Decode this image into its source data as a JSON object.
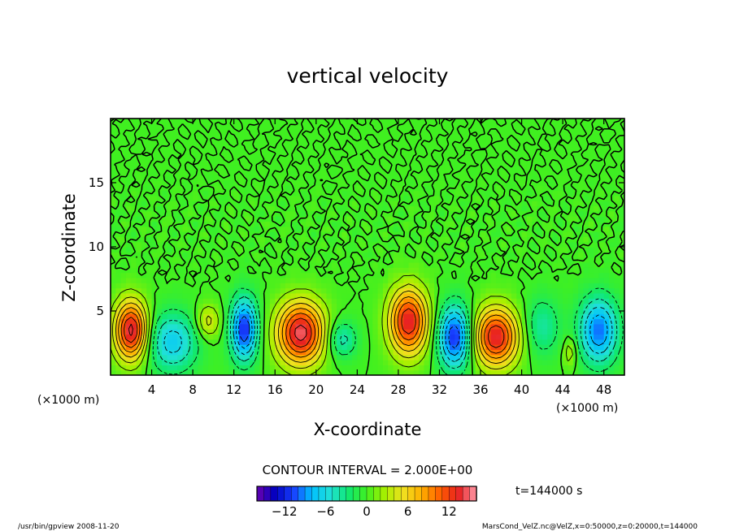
{
  "chart_data": {
    "type": "heatmap",
    "title": "vertical velocity",
    "xlabel": "X-coordinate",
    "ylabel": "Z-coordinate",
    "x_unit": "(×1000 m)",
    "y_unit": "(×1000 m)",
    "xlim": [
      0,
      50
    ],
    "ylim": [
      0,
      20
    ],
    "xticks": [
      "4",
      "8",
      "12",
      "16",
      "20",
      "24",
      "28",
      "32",
      "36",
      "40",
      "44",
      "48"
    ],
    "yticks": [
      "5",
      "10",
      "15"
    ],
    "contour_interval": "CONTOUR INTERVAL = 2.000E+00",
    "time": "t=144000 s",
    "colorbar": {
      "min": -16,
      "max": 16,
      "ticks": [
        "−12",
        "−6",
        "0",
        "6",
        "12"
      ],
      "colors": [
        "#6a00b0",
        "#0000c0",
        "#1840ff",
        "#00c0ff",
        "#20e0d8",
        "#10e870",
        "#40f020",
        "#a8f000",
        "#f0e020",
        "#ffb000",
        "#ff6000",
        "#e82020",
        "#ff9aa8"
      ]
    },
    "cells": [
      {
        "x": 2,
        "z": 3.5,
        "w": 15,
        "sx": 1.1,
        "sz": 1.6
      },
      {
        "x": 6,
        "z": 2.6,
        "w": -7,
        "sx": 1.7,
        "sz": 1.6
      },
      {
        "x": 9.5,
        "z": 4.2,
        "w": 5,
        "sx": 0.8,
        "sz": 0.9
      },
      {
        "x": 13,
        "z": 3.6,
        "w": -12,
        "sx": 0.9,
        "sz": 1.7
      },
      {
        "x": 18.5,
        "z": 3.3,
        "w": 15,
        "sx": 1.6,
        "sz": 1.7
      },
      {
        "x": 22.5,
        "z": 2.8,
        "w": -5,
        "sx": 1.0,
        "sz": 1.0
      },
      {
        "x": 29,
        "z": 4.2,
        "w": 14,
        "sx": 1.3,
        "sz": 1.8
      },
      {
        "x": 33.5,
        "z": 3.0,
        "w": -12,
        "sx": 1.1,
        "sz": 1.7
      },
      {
        "x": 37.5,
        "z": 3.0,
        "w": 14,
        "sx": 1.5,
        "sz": 1.6
      },
      {
        "x": 42,
        "z": 3.8,
        "w": -4,
        "sx": 1.2,
        "sz": 1.6
      },
      {
        "x": 44.7,
        "z": 1.8,
        "w": 4,
        "sx": 0.4,
        "sz": 0.8
      },
      {
        "x": 47.5,
        "z": 3.5,
        "w": -10,
        "sx": 1.3,
        "sz": 1.8
      }
    ]
  },
  "footer": {
    "left": "/usr/bin/gpview  2008-11-20",
    "right": "MarsCond_VelZ.nc@VelZ,x=0:50000,z=0:20000,t=144000"
  }
}
